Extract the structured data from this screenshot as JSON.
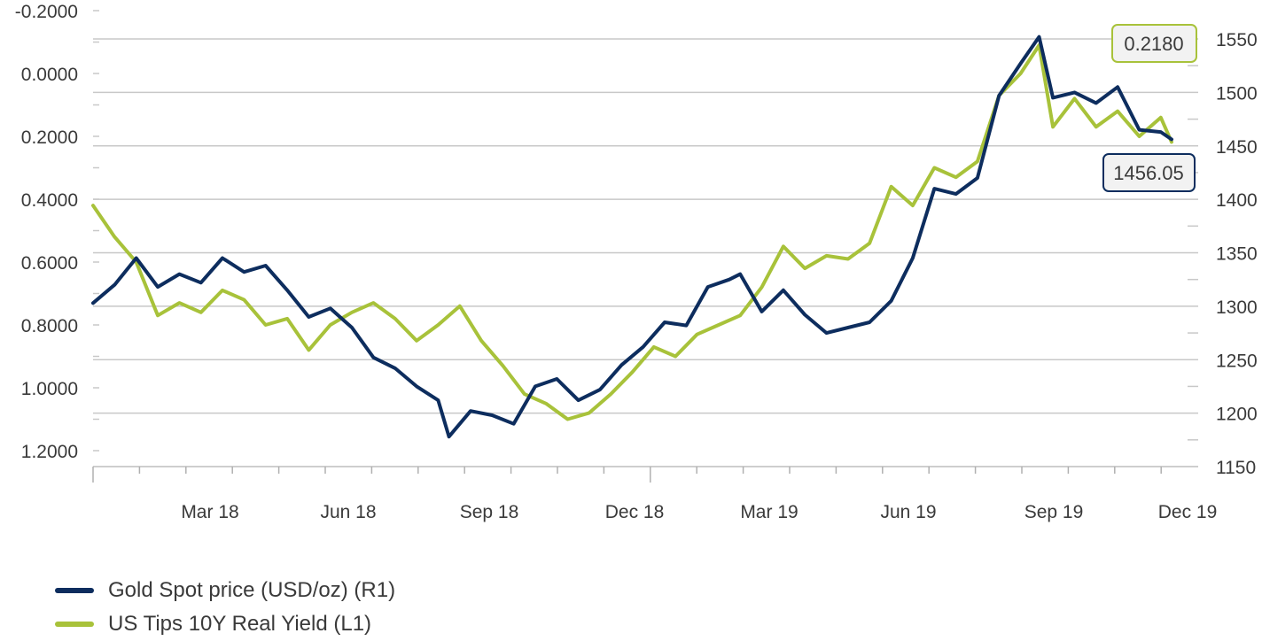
{
  "chart_data": {
    "type": "line",
    "left_axis": {
      "label": "L1",
      "ticks": [
        "-0.2000",
        "0.0000",
        "0.2000",
        "0.4000",
        "0.6000",
        "0.8000",
        "1.0000",
        "1.2000"
      ],
      "tick_values": [
        -0.2,
        0.0,
        0.2,
        0.4,
        0.6,
        0.8,
        1.0,
        1.2
      ],
      "range": [
        -0.2,
        1.2
      ],
      "inverted": true
    },
    "right_axis": {
      "label": "R1",
      "ticks": [
        "1550",
        "1500",
        "1450",
        "1400",
        "1350",
        "1300",
        "1250",
        "1200",
        "1150"
      ],
      "tick_values": [
        1550,
        1500,
        1450,
        1400,
        1350,
        1300,
        1250,
        1200,
        1150
      ],
      "range": [
        1150,
        1550
      ]
    },
    "x_axis": {
      "ticks": [
        "Mar 18",
        "Jun 18",
        "Sep 18",
        "Dec 18",
        "Mar 19",
        "Jun 19",
        "Sep 19",
        "Dec 19"
      ],
      "range": [
        "2017-12-29",
        "2019-11-29"
      ]
    },
    "grid": "horizontal",
    "legend_position": "bottom-left",
    "series": [
      {
        "name": "Gold Spot price (USD/oz) (R1)",
        "axis": "right",
        "color": "#0d2d5e",
        "last_value_label": "1456.05",
        "points": [
          [
            "2017-12-29",
            1303
          ],
          [
            "2018-01-12",
            1320
          ],
          [
            "2018-01-26",
            1345
          ],
          [
            "2018-02-09",
            1318
          ],
          [
            "2018-02-23",
            1330
          ],
          [
            "2018-03-09",
            1322
          ],
          [
            "2018-03-23",
            1345
          ],
          [
            "2018-04-06",
            1332
          ],
          [
            "2018-04-20",
            1338
          ],
          [
            "2018-05-04",
            1315
          ],
          [
            "2018-05-18",
            1290
          ],
          [
            "2018-06-01",
            1298
          ],
          [
            "2018-06-15",
            1280
          ],
          [
            "2018-06-29",
            1252
          ],
          [
            "2018-07-13",
            1242
          ],
          [
            "2018-07-27",
            1225
          ],
          [
            "2018-08-10",
            1212
          ],
          [
            "2018-08-17",
            1178
          ],
          [
            "2018-08-31",
            1202
          ],
          [
            "2018-09-14",
            1198
          ],
          [
            "2018-09-28",
            1190
          ],
          [
            "2018-10-12",
            1225
          ],
          [
            "2018-10-26",
            1232
          ],
          [
            "2018-11-09",
            1212
          ],
          [
            "2018-11-23",
            1222
          ],
          [
            "2018-12-07",
            1245
          ],
          [
            "2018-12-21",
            1262
          ],
          [
            "2019-01-04",
            1285
          ],
          [
            "2019-01-18",
            1282
          ],
          [
            "2019-02-01",
            1318
          ],
          [
            "2019-02-15",
            1325
          ],
          [
            "2019-02-22",
            1330
          ],
          [
            "2019-03-08",
            1295
          ],
          [
            "2019-03-22",
            1315
          ],
          [
            "2019-04-05",
            1292
          ],
          [
            "2019-04-19",
            1275
          ],
          [
            "2019-05-03",
            1280
          ],
          [
            "2019-05-17",
            1285
          ],
          [
            "2019-05-31",
            1305
          ],
          [
            "2019-06-14",
            1345
          ],
          [
            "2019-06-28",
            1410
          ],
          [
            "2019-07-12",
            1405
          ],
          [
            "2019-07-26",
            1420
          ],
          [
            "2019-08-09",
            1497
          ],
          [
            "2019-08-23",
            1527
          ],
          [
            "2019-09-04",
            1552
          ],
          [
            "2019-09-13",
            1495
          ],
          [
            "2019-09-27",
            1500
          ],
          [
            "2019-10-11",
            1490
          ],
          [
            "2019-10-25",
            1505
          ],
          [
            "2019-11-08",
            1465
          ],
          [
            "2019-11-22",
            1463
          ],
          [
            "2019-11-29",
            1456.05
          ]
        ]
      },
      {
        "name": "US Tips 10Y Real Yield (L1)",
        "axis": "left",
        "color": "#a8c23a",
        "last_value_label": "0.2180",
        "points": [
          [
            "2017-12-29",
            0.42
          ],
          [
            "2018-01-12",
            0.52
          ],
          [
            "2018-01-26",
            0.6
          ],
          [
            "2018-02-09",
            0.77
          ],
          [
            "2018-02-23",
            0.73
          ],
          [
            "2018-03-09",
            0.76
          ],
          [
            "2018-03-23",
            0.69
          ],
          [
            "2018-04-06",
            0.72
          ],
          [
            "2018-04-20",
            0.8
          ],
          [
            "2018-05-04",
            0.78
          ],
          [
            "2018-05-18",
            0.88
          ],
          [
            "2018-06-01",
            0.8
          ],
          [
            "2018-06-15",
            0.76
          ],
          [
            "2018-06-29",
            0.73
          ],
          [
            "2018-07-13",
            0.78
          ],
          [
            "2018-07-27",
            0.85
          ],
          [
            "2018-08-10",
            0.8
          ],
          [
            "2018-08-24",
            0.74
          ],
          [
            "2018-09-07",
            0.85
          ],
          [
            "2018-09-21",
            0.93
          ],
          [
            "2018-10-05",
            1.02
          ],
          [
            "2018-10-19",
            1.05
          ],
          [
            "2018-11-02",
            1.1
          ],
          [
            "2018-11-16",
            1.08
          ],
          [
            "2018-11-30",
            1.02
          ],
          [
            "2018-12-14",
            0.95
          ],
          [
            "2018-12-28",
            0.87
          ],
          [
            "2019-01-11",
            0.9
          ],
          [
            "2019-01-25",
            0.83
          ],
          [
            "2019-02-08",
            0.8
          ],
          [
            "2019-02-22",
            0.77
          ],
          [
            "2019-03-08",
            0.68
          ],
          [
            "2019-03-22",
            0.55
          ],
          [
            "2019-04-05",
            0.62
          ],
          [
            "2019-04-19",
            0.58
          ],
          [
            "2019-05-03",
            0.59
          ],
          [
            "2019-05-17",
            0.54
          ],
          [
            "2019-05-31",
            0.36
          ],
          [
            "2019-06-14",
            0.42
          ],
          [
            "2019-06-28",
            0.3
          ],
          [
            "2019-07-12",
            0.33
          ],
          [
            "2019-07-26",
            0.28
          ],
          [
            "2019-08-09",
            0.07
          ],
          [
            "2019-08-23",
            0.0
          ],
          [
            "2019-09-04",
            -0.09
          ],
          [
            "2019-09-13",
            0.17
          ],
          [
            "2019-09-27",
            0.08
          ],
          [
            "2019-10-11",
            0.17
          ],
          [
            "2019-10-25",
            0.12
          ],
          [
            "2019-11-08",
            0.2
          ],
          [
            "2019-11-22",
            0.14
          ],
          [
            "2019-11-29",
            0.218
          ]
        ]
      }
    ]
  },
  "legend": [
    {
      "label": "Gold Spot price (USD/oz) (R1)",
      "color": "#0d2d5e"
    },
    {
      "label": "US Tips 10Y Real Yield (L1)",
      "color": "#a8c23a"
    }
  ],
  "callouts": {
    "yield_value": "0.2180",
    "gold_value": "1456.05"
  }
}
